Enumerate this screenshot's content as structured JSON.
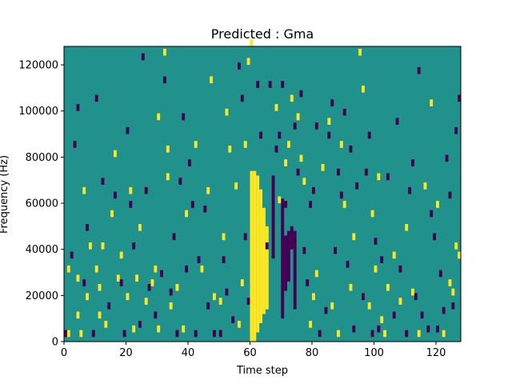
{
  "chart_data": {
    "type": "heatmap",
    "title": "Predicted : Gma",
    "xlabel": "Time step",
    "ylabel": "Frequency (Hz)",
    "xlim": [
      0,
      128
    ],
    "ylim": [
      0,
      128000
    ],
    "xticks": [
      0,
      20,
      40,
      60,
      80,
      100,
      120
    ],
    "yticks": [
      0,
      20000,
      40000,
      60000,
      80000,
      100000,
      120000
    ],
    "colors": {
      "background": "#21918c",
      "high": "#fde725",
      "low": "#440154"
    },
    "grid": false,
    "legend": "none",
    "spectrogram": {
      "n_time_steps": 128,
      "n_freq_bins": 128,
      "freq_max_hz": 128000,
      "yellow_bands": [
        {
          "t": 60,
          "f0": 0,
          "f1": 74000
        },
        {
          "t": 61,
          "f0": 0,
          "f1": 74000
        },
        {
          "t": 62,
          "f0": 4000,
          "f1": 72000
        },
        {
          "t": 63,
          "f0": 8000,
          "f1": 66000
        },
        {
          "t": 64,
          "f0": 12000,
          "f1": 58000
        },
        {
          "t": 65,
          "f0": 14000,
          "f1": 50000
        }
      ],
      "dark_bands": [
        {
          "t": 67,
          "f0": 36000,
          "f1": 72000
        },
        {
          "t": 70,
          "f0": 10000,
          "f1": 62000
        },
        {
          "t": 71,
          "f0": 22000,
          "f1": 46000
        },
        {
          "t": 72,
          "f0": 26000,
          "f1": 48000
        },
        {
          "t": 73,
          "f0": 40000,
          "f1": 50000
        },
        {
          "t": 74,
          "f0": 14000,
          "f1": 48000
        }
      ],
      "yellow_cells": [
        [
          1,
          30000
        ],
        [
          1,
          2000
        ],
        [
          4,
          10000
        ],
        [
          4,
          26000
        ],
        [
          5,
          2000
        ],
        [
          6,
          64000
        ],
        [
          7,
          18000
        ],
        [
          8,
          40000
        ],
        [
          10,
          30000
        ],
        [
          11,
          22000
        ],
        [
          11,
          10000
        ],
        [
          12,
          40000
        ],
        [
          13,
          6000
        ],
        [
          15,
          54000
        ],
        [
          16,
          80000
        ],
        [
          17,
          26000
        ],
        [
          18,
          36000
        ],
        [
          20,
          18000
        ],
        [
          21,
          64000
        ],
        [
          22,
          4000
        ],
        [
          23,
          26000
        ],
        [
          24,
          48000
        ],
        [
          26,
          16000
        ],
        [
          28,
          24000
        ],
        [
          29,
          30000
        ],
        [
          30,
          96000
        ],
        [
          30,
          4000
        ],
        [
          32,
          124000
        ],
        [
          33,
          70000
        ],
        [
          33,
          82000
        ],
        [
          34,
          14000
        ],
        [
          36,
          22000
        ],
        [
          38,
          4000
        ],
        [
          39,
          54000
        ],
        [
          42,
          84000
        ],
        [
          44,
          30000
        ],
        [
          46,
          64000
        ],
        [
          47,
          112000
        ],
        [
          48,
          18000
        ],
        [
          50,
          16000
        ],
        [
          51,
          44000
        ],
        [
          52,
          98000
        ],
        [
          53,
          82000
        ],
        [
          55,
          66000
        ],
        [
          56,
          6000
        ],
        [
          57,
          24000
        ],
        [
          58,
          84000
        ],
        [
          59,
          120000
        ],
        [
          60,
          128000
        ],
        [
          68,
          100000
        ],
        [
          69,
          60000
        ],
        [
          71,
          76000
        ],
        [
          72,
          84000
        ],
        [
          73,
          104000
        ],
        [
          75,
          96000
        ],
        [
          76,
          78000
        ],
        [
          77,
          68000
        ],
        [
          79,
          6000
        ],
        [
          80,
          18000
        ],
        [
          81,
          28000
        ],
        [
          83,
          74000
        ],
        [
          85,
          94000
        ],
        [
          86,
          14000
        ],
        [
          88,
          2000
        ],
        [
          89,
          84000
        ],
        [
          90,
          58000
        ],
        [
          92,
          22000
        ],
        [
          93,
          44000
        ],
        [
          95,
          124000
        ],
        [
          96,
          108000
        ],
        [
          98,
          14000
        ],
        [
          99,
          54000
        ],
        [
          100,
          30000
        ],
        [
          101,
          70000
        ],
        [
          102,
          8000
        ],
        [
          103,
          2000
        ],
        [
          104,
          22000
        ],
        [
          106,
          36000
        ],
        [
          108,
          16000
        ],
        [
          110,
          48000
        ],
        [
          112,
          20000
        ],
        [
          114,
          2000
        ],
        [
          116,
          66000
        ],
        [
          118,
          102000
        ],
        [
          120,
          58000
        ],
        [
          122,
          2000
        ],
        [
          124,
          24000
        ],
        [
          125,
          20000
        ],
        [
          126,
          40000
        ],
        [
          127,
          36000
        ]
      ],
      "dark_cells": [
        [
          0,
          2000
        ],
        [
          2,
          36000
        ],
        [
          3,
          84000
        ],
        [
          4,
          100000
        ],
        [
          6,
          24000
        ],
        [
          7,
          48000
        ],
        [
          9,
          2000
        ],
        [
          10,
          104000
        ],
        [
          12,
          68000
        ],
        [
          14,
          14000
        ],
        [
          16,
          62000
        ],
        [
          18,
          24000
        ],
        [
          19,
          2000
        ],
        [
          20,
          90000
        ],
        [
          21,
          58000
        ],
        [
          22,
          40000
        ],
        [
          24,
          6000
        ],
        [
          25,
          122000
        ],
        [
          26,
          64000
        ],
        [
          27,
          22000
        ],
        [
          29,
          10000
        ],
        [
          31,
          28000
        ],
        [
          32,
          112000
        ],
        [
          34,
          20000
        ],
        [
          35,
          44000
        ],
        [
          36,
          2000
        ],
        [
          37,
          68000
        ],
        [
          38,
          96000
        ],
        [
          39,
          30000
        ],
        [
          40,
          76000
        ],
        [
          41,
          58000
        ],
        [
          42,
          2000
        ],
        [
          43,
          34000
        ],
        [
          45,
          56000
        ],
        [
          46,
          14000
        ],
        [
          48,
          2000
        ],
        [
          50,
          2000
        ],
        [
          51,
          34000
        ],
        [
          52,
          20000
        ],
        [
          54,
          8000
        ],
        [
          56,
          118000
        ],
        [
          57,
          104000
        ],
        [
          58,
          44000
        ],
        [
          59,
          16000
        ],
        [
          62,
          110000
        ],
        [
          63,
          88000
        ],
        [
          65,
          40000
        ],
        [
          66,
          110000
        ],
        [
          68,
          82000
        ],
        [
          69,
          88000
        ],
        [
          70,
          110000
        ],
        [
          71,
          58000
        ],
        [
          73,
          46000
        ],
        [
          74,
          92000
        ],
        [
          75,
          72000
        ],
        [
          76,
          106000
        ],
        [
          77,
          38000
        ],
        [
          78,
          24000
        ],
        [
          79,
          58000
        ],
        [
          80,
          64000
        ],
        [
          81,
          92000
        ],
        [
          82,
          2000
        ],
        [
          84,
          12000
        ],
        [
          85,
          88000
        ],
        [
          86,
          102000
        ],
        [
          87,
          38000
        ],
        [
          88,
          72000
        ],
        [
          89,
          62000
        ],
        [
          90,
          98000
        ],
        [
          91,
          32000
        ],
        [
          92,
          82000
        ],
        [
          93,
          4000
        ],
        [
          94,
          66000
        ],
        [
          96,
          18000
        ],
        [
          97,
          72000
        ],
        [
          98,
          88000
        ],
        [
          99,
          2000
        ],
        [
          100,
          42000
        ],
        [
          101,
          4000
        ],
        [
          102,
          34000
        ],
        [
          104,
          70000
        ],
        [
          106,
          10000
        ],
        [
          107,
          94000
        ],
        [
          108,
          30000
        ],
        [
          110,
          2000
        ],
        [
          111,
          64000
        ],
        [
          112,
          76000
        ],
        [
          113,
          18000
        ],
        [
          114,
          116000
        ],
        [
          115,
          10000
        ],
        [
          117,
          4000
        ],
        [
          118,
          54000
        ],
        [
          119,
          44000
        ],
        [
          120,
          4000
        ],
        [
          121,
          28000
        ],
        [
          122,
          12000
        ],
        [
          123,
          78000
        ],
        [
          124,
          62000
        ],
        [
          125,
          14000
        ],
        [
          126,
          90000
        ],
        [
          127,
          104000
        ]
      ]
    }
  }
}
